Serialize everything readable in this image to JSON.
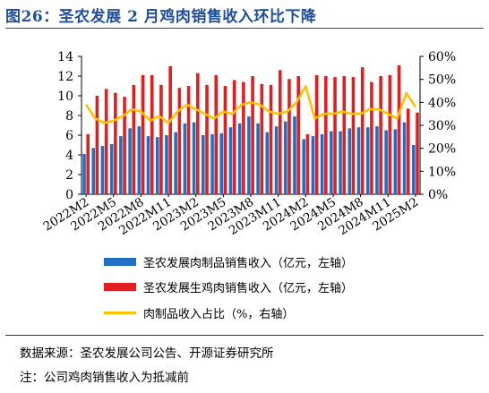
{
  "title": "图26：圣农发展 2 月鸡肉销售收入环比下降",
  "chart_data": {
    "type": "bar",
    "categories": [
      "2022M2",
      "2022M3",
      "2022M4",
      "2022M5",
      "2022M6",
      "2022M7",
      "2022M8",
      "2022M9",
      "2022M10",
      "2022M11",
      "2022M12",
      "2023M1",
      "2023M2",
      "2023M3",
      "2023M4",
      "2023M5",
      "2023M6",
      "2023M7",
      "2023M8",
      "2023M9",
      "2023M10",
      "2023M11",
      "2023M12",
      "2024M1",
      "2024M2",
      "2024M3",
      "2024M4",
      "2024M5",
      "2024M6",
      "2024M7",
      "2024M8",
      "2024M9",
      "2024M10",
      "2024M11",
      "2024M12",
      "2025M1",
      "2025M2"
    ],
    "x_tick_labels": [
      "2022M2",
      "2022M5",
      "2022M8",
      "2022M11",
      "2023M2",
      "2023M5",
      "2023M8",
      "2023M11",
      "2024M2",
      "2024M5",
      "2024M8",
      "2024M11",
      "2025M2"
    ],
    "series": [
      {
        "name": "圣农发展肉制品销售收入（亿元，左轴）",
        "axis": "left",
        "kind": "bar",
        "color": "#1f6fc4",
        "values": [
          4.1,
          4.7,
          4.9,
          5.1,
          5.9,
          6.7,
          6.9,
          5.9,
          5.8,
          6.0,
          6.3,
          7.2,
          7.3,
          6.0,
          6.1,
          6.2,
          6.8,
          7.2,
          7.9,
          7.2,
          6.3,
          6.9,
          7.4,
          7.9,
          5.6,
          5.9,
          6.1,
          6.4,
          6.4,
          6.7,
          6.8,
          6.8,
          6.9,
          6.5,
          6.6,
          7.3,
          5.0
        ]
      },
      {
        "name": "圣农发展生鸡肉销售收入（亿元，左轴）",
        "axis": "left",
        "kind": "bar",
        "color": "#e02020",
        "values": [
          6.1,
          10.0,
          10.7,
          10.3,
          9.9,
          11.1,
          12.1,
          12.1,
          11.1,
          13.0,
          10.8,
          11.0,
          12.3,
          11.1,
          12.1,
          11.0,
          11.6,
          11.4,
          12.0,
          11.2,
          11.1,
          12.6,
          11.7,
          12.0,
          6.1,
          12.1,
          12.0,
          11.9,
          12.0,
          11.9,
          12.9,
          11.4,
          12.0,
          12.1,
          13.1,
          8.7,
          8.3
        ]
      },
      {
        "name": "肉制品收入占比（%，右轴）",
        "axis": "right",
        "kind": "line",
        "color": "#ffc000",
        "values": [
          39,
          33,
          31,
          32,
          34,
          37,
          36,
          32,
          34,
          31,
          36,
          39,
          37,
          35,
          33,
          36,
          35,
          39,
          40,
          39,
          36,
          35,
          36,
          40,
          47,
          33,
          35,
          35,
          36,
          35,
          35,
          37,
          37,
          35,
          33,
          44,
          38
        ]
      }
    ],
    "ylim_left": [
      0,
      14
    ],
    "yticks_left": [
      0,
      2,
      4,
      6,
      8,
      10,
      12,
      14
    ],
    "ylim_right": [
      0,
      60
    ],
    "yticks_right": [
      "0%",
      "10%",
      "20%",
      "30%",
      "40%",
      "50%",
      "60%"
    ],
    "grid": false,
    "legend_placement": "bottom"
  },
  "legend": [
    {
      "label": "圣农发展肉制品销售收入（亿元，左轴）",
      "color": "#1f6fc4",
      "shape": "box"
    },
    {
      "label": "圣农发展生鸡肉销售收入（亿元，左轴）",
      "color": "#e02020",
      "shape": "box"
    },
    {
      "label": "肉制品收入占比（%，右轴）",
      "color": "#ffc000",
      "shape": "line"
    }
  ],
  "source": "数据来源：圣农发展公司公告、开源证券研究所",
  "note": "注：公司鸡肉销售收入为抵减前"
}
